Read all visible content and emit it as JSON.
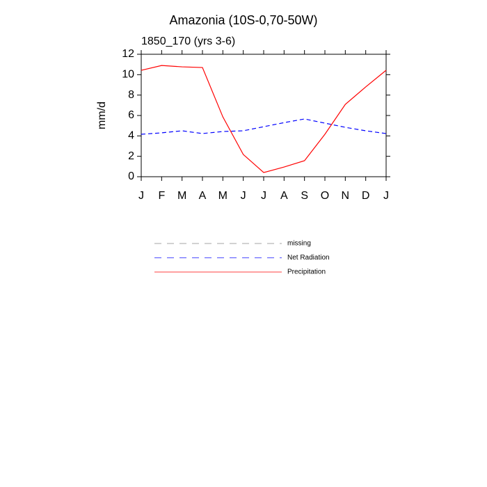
{
  "chart_data": {
    "type": "line",
    "title": "Amazonia (10S-0,70-50W)",
    "subtitle": "1850_170 (yrs 3-6)",
    "y_label": "mm/d",
    "categories": [
      "J",
      "F",
      "M",
      "A",
      "M",
      "J",
      "J",
      "A",
      "S",
      "O",
      "N",
      "D",
      "J"
    ],
    "series": [
      {
        "name": "missing",
        "color": "#888888",
        "dashed": true,
        "values": [
          null,
          null,
          null,
          null,
          null,
          null,
          null,
          null,
          null,
          null,
          null,
          null,
          null
        ]
      },
      {
        "name": "Net Radiation",
        "color": "#0000ff",
        "dashed": true,
        "values": [
          4.16,
          4.3,
          4.5,
          4.23,
          4.43,
          4.5,
          4.9,
          5.3,
          5.66,
          5.25,
          4.84,
          4.5,
          4.23
        ]
      },
      {
        "name": "Precipitation",
        "color": "#ff0000",
        "dashed": false,
        "values": [
          10.43,
          10.9,
          10.77,
          10.7,
          5.86,
          2.18,
          0.41,
          0.95,
          1.57,
          4.16,
          7.09,
          8.8,
          10.43
        ]
      }
    ],
    "ylim": [
      0,
      12
    ],
    "yticks": [
      0,
      2,
      4,
      6,
      8,
      10,
      12
    ],
    "grid": false
  }
}
